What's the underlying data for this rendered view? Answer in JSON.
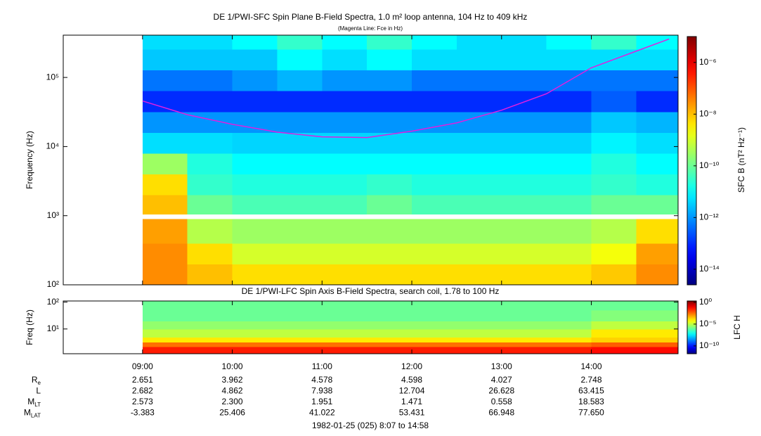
{
  "chart_data": [
    {
      "type": "heatmap",
      "title": "DE 1/PWI-SFC  Spin Plane B-Field Spectra, 1.0 m² loop antenna, 104 Hz to 409 kHz",
      "subtitle": "(Magenta Line: Fce in Hz)",
      "y_label": "Frequency (Hz)",
      "xlim": [
        487,
        898
      ],
      "ylim": [
        100,
        409000
      ],
      "y_log": true,
      "yticks": [
        {
          "value": 100,
          "label": "10²"
        },
        {
          "value": 1000,
          "label": "10³"
        },
        {
          "value": 10000,
          "label": "10⁴"
        },
        {
          "value": 100000,
          "label": "10⁵"
        }
      ],
      "xbins": [
        540,
        570,
        600,
        630,
        660,
        690,
        720,
        750,
        780,
        810,
        840,
        870,
        898
      ],
      "ybins": [
        100,
        200,
        400,
        895,
        1050,
        2000,
        4000,
        8000,
        16000,
        32000,
        64000,
        128000,
        256000,
        409000
      ],
      "values": [
        [
          3e-08,
          1e-08,
          5e-09,
          5e-09,
          5e-09,
          5e-09,
          5e-09,
          5e-09,
          5e-09,
          5e-09,
          8e-09,
          3e-08
        ],
        [
          3e-08,
          5e-09,
          1e-09,
          1e-09,
          1e-09,
          1e-09,
          1e-09,
          1e-09,
          1e-09,
          1e-09,
          2e-09,
          2e-08
        ],
        [
          2e-08,
          5e-10,
          3e-10,
          3e-10,
          3e-10,
          3e-10,
          3e-10,
          3e-10,
          3e-10,
          3e-10,
          5e-10,
          5e-09
        ],
        [
          null,
          null,
          null,
          null,
          null,
          null,
          null,
          null,
          null,
          null,
          null,
          null
        ],
        [
          1e-08,
          1e-10,
          5e-11,
          5e-11,
          5e-11,
          1e-10,
          5e-11,
          5e-11,
          5e-11,
          5e-11,
          1e-10,
          1e-10
        ],
        [
          5e-09,
          3e-11,
          2e-11,
          2e-11,
          2e-11,
          3e-11,
          2e-11,
          2e-11,
          2e-11,
          2e-11,
          3e-11,
          2e-11
        ],
        [
          3e-10,
          2e-11,
          1e-11,
          1e-11,
          1e-11,
          1e-11,
          1e-11,
          1e-11,
          1e-11,
          1e-11,
          2e-11,
          1e-11
        ],
        [
          5e-12,
          5e-12,
          4e-12,
          4e-12,
          4e-12,
          4e-12,
          4e-12,
          4e-12,
          4e-12,
          4e-12,
          8e-12,
          5e-12
        ],
        [
          1e-12,
          1e-12,
          1e-12,
          1e-12,
          1e-12,
          1e-12,
          1e-12,
          1e-12,
          1e-12,
          1e-12,
          3e-12,
          2e-12
        ],
        [
          1e-13,
          1e-13,
          1e-13,
          1e-13,
          1e-13,
          1e-13,
          1e-13,
          1e-13,
          1e-13,
          1e-13,
          3e-13,
          1e-13
        ],
        [
          5e-13,
          5e-13,
          1e-12,
          2e-12,
          1e-12,
          1e-12,
          5e-13,
          5e-13,
          5e-13,
          5e-13,
          5e-13,
          5e-13
        ],
        [
          3e-12,
          3e-12,
          3e-12,
          1e-11,
          5e-12,
          1e-11,
          5e-12,
          5e-12,
          5e-12,
          5e-12,
          5e-12,
          5e-12
        ],
        [
          5e-12,
          5e-12,
          1e-11,
          3e-11,
          1e-11,
          3e-11,
          1e-11,
          5e-12,
          5e-12,
          1e-11,
          3e-11,
          1e-11
        ]
      ],
      "colormap": "jet",
      "colorbar": {
        "label": "SFC B (nT² Hz⁻¹)",
        "lim": [
          2.5e-15,
          1e-05
        ],
        "ticks": [
          {
            "value": 1e-06,
            "label": "10⁻⁶"
          },
          {
            "value": 1e-08,
            "label": "10⁻⁸"
          },
          {
            "value": 1e-10,
            "label": "10⁻¹⁰"
          },
          {
            "value": 1e-12,
            "label": "10⁻¹²"
          },
          {
            "value": 1e-14,
            "label": "10⁻¹⁴"
          }
        ]
      },
      "series": [
        {
          "color": "#e020e0",
          "x": [
            540,
            570,
            600,
            630,
            660,
            690,
            720,
            750,
            780,
            810,
            840,
            870,
            892
          ],
          "values": [
            45700,
            28900,
            21000,
            16200,
            13800,
            13500,
            16700,
            22000,
            33600,
            58000,
            138000,
            240000,
            360000
          ]
        }
      ]
    },
    {
      "type": "heatmap",
      "title": "DE 1/PWI-LFC  Spin Axis B-Field Spectra, search coil, 1.78 to 100 Hz",
      "y_label": "Freq (Hz)",
      "xlim": [
        487,
        898
      ],
      "ylim": [
        1.2,
        110
      ],
      "y_log": true,
      "xticks": [
        {
          "value": 540,
          "label": "09:00"
        },
        {
          "value": 600,
          "label": "10:00"
        },
        {
          "value": 660,
          "label": "11:00"
        },
        {
          "value": 720,
          "label": "12:00"
        },
        {
          "value": 780,
          "label": "13:00"
        },
        {
          "value": 840,
          "label": "14:00"
        }
      ],
      "yticks": [
        {
          "value": 10,
          "label": "10¹"
        },
        {
          "value": 100,
          "label": "10²"
        }
      ],
      "xbins": [
        540,
        600,
        660,
        720,
        780,
        840,
        898
      ],
      "ybins": [
        1.2,
        2.2,
        3.2,
        5,
        10,
        20,
        50,
        110
      ],
      "values": [
        [
          0.03,
          0.03,
          0.03,
          0.03,
          0.03,
          0.05
        ],
        [
          0.003,
          0.003,
          0.003,
          0.003,
          0.003,
          0.005
        ],
        [
          0.0001,
          0.0001,
          0.0001,
          0.0001,
          0.0001,
          0.0002
        ],
        [
          1e-05,
          1e-05,
          1e-05,
          1e-05,
          1e-05,
          0.0001
        ],
        [
          3e-06,
          3e-06,
          3e-06,
          3e-06,
          3e-06,
          1e-05
        ],
        [
          1e-06,
          1e-06,
          1e-06,
          1e-06,
          1e-06,
          2e-06
        ],
        [
          1e-06,
          1e-06,
          1e-06,
          1e-06,
          1e-06,
          1e-06
        ]
      ],
      "colormap": "jet",
      "colorbar": {
        "label": "LFC H",
        "lim": [
          1.6e-12,
          2
        ],
        "ticks": [
          {
            "value": 1,
            "label": "10⁰"
          },
          {
            "value": 1e-05,
            "label": "10⁻⁵"
          },
          {
            "value": 1e-10,
            "label": "10⁻¹⁰"
          }
        ]
      }
    }
  ],
  "ephemeris": {
    "rows": [
      {
        "label": "R",
        "sub": "e",
        "values": [
          "2.651",
          "3.962",
          "4.578",
          "4.598",
          "4.027",
          "2.748"
        ]
      },
      {
        "label": "L",
        "values": [
          "2.682",
          "4.862",
          "7.938",
          "12.704",
          "26.628",
          "63.415"
        ]
      },
      {
        "label": "M",
        "sub": "LT",
        "values": [
          "2.573",
          "2.300",
          "1.951",
          "1.471",
          "0.558",
          "18.583"
        ]
      },
      {
        "label": "M",
        "sub": "LAT",
        "values": [
          "-3.383",
          "25.406",
          "41.022",
          "53.431",
          "66.948",
          "77.650"
        ]
      }
    ],
    "footer": "1982-01-25 (025) 8:07 to 14:58"
  }
}
